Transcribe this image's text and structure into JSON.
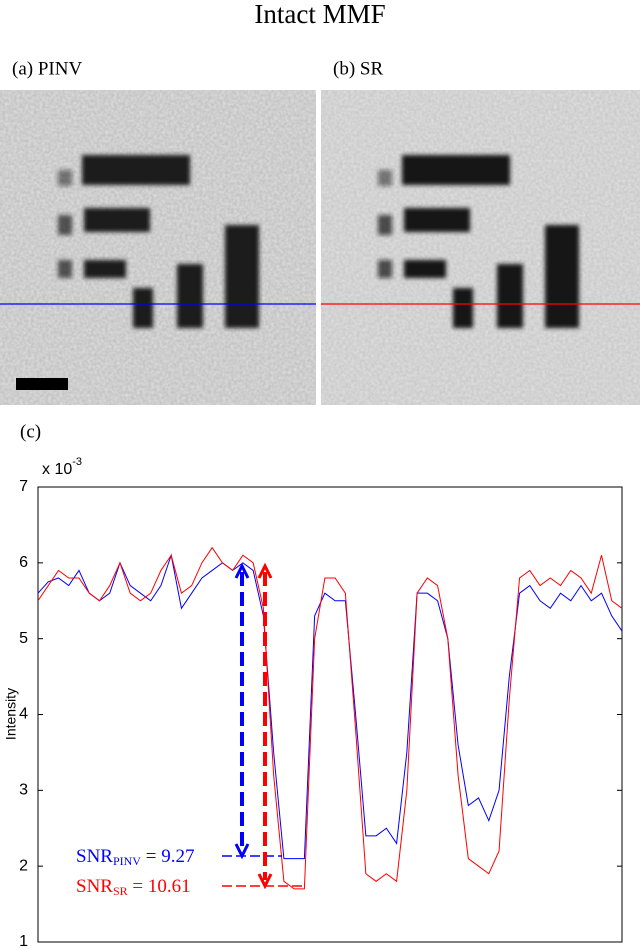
{
  "chart_data": {
    "type": "line",
    "title": "Intact MMF",
    "panel_labels": [
      "(a) PINV",
      "(b) SR",
      "(c)"
    ],
    "ylabel": "Intensity",
    "y_multiplier": {
      "base": "x 10",
      "exponent": "-3"
    },
    "ylim": [
      1,
      7
    ],
    "yticks": [
      1,
      2,
      3,
      4,
      5,
      6,
      7
    ],
    "series": [
      {
        "name": "PINV",
        "color": "#0000ff",
        "values": [
          5.6,
          5.75,
          5.8,
          5.7,
          5.9,
          5.6,
          5.5,
          5.6,
          6.0,
          5.7,
          5.6,
          5.5,
          5.7,
          6.1,
          5.4,
          5.6,
          5.8,
          5.9,
          6.0,
          5.9,
          6.0,
          5.9,
          5.3,
          3.5,
          2.1,
          2.1,
          2.1,
          5.3,
          5.6,
          5.5,
          5.5,
          4.0,
          2.4,
          2.4,
          2.5,
          2.3,
          3.5,
          5.6,
          5.6,
          5.5,
          5.0,
          3.6,
          2.8,
          2.9,
          2.6,
          3.0,
          4.5,
          5.6,
          5.7,
          5.5,
          5.4,
          5.6,
          5.5,
          5.7,
          5.5,
          5.6,
          5.3,
          5.1
        ]
      },
      {
        "name": "SR",
        "color": "#ff0000",
        "values": [
          5.5,
          5.7,
          5.9,
          5.8,
          5.8,
          5.6,
          5.5,
          5.7,
          6.0,
          5.6,
          5.5,
          5.6,
          5.9,
          6.1,
          5.6,
          5.7,
          6.0,
          6.2,
          6.0,
          5.9,
          6.1,
          6.0,
          5.4,
          3.2,
          1.8,
          1.7,
          1.7,
          5.0,
          5.8,
          5.8,
          5.6,
          3.8,
          1.9,
          1.8,
          1.9,
          1.8,
          3.0,
          5.6,
          5.8,
          5.7,
          5.0,
          3.2,
          2.1,
          2.0,
          1.9,
          2.2,
          4.2,
          5.8,
          5.9,
          5.7,
          5.8,
          5.7,
          5.9,
          5.8,
          5.6,
          6.1,
          5.5,
          5.4
        ]
      }
    ],
    "annotations": [
      {
        "text": "SNR",
        "sub": "PINV",
        "rest": " = 9.27",
        "color": "#0000ff"
      },
      {
        "text": "SNR",
        "sub": "SR",
        "rest": " = 10.61",
        "color": "#ff0000"
      }
    ]
  }
}
